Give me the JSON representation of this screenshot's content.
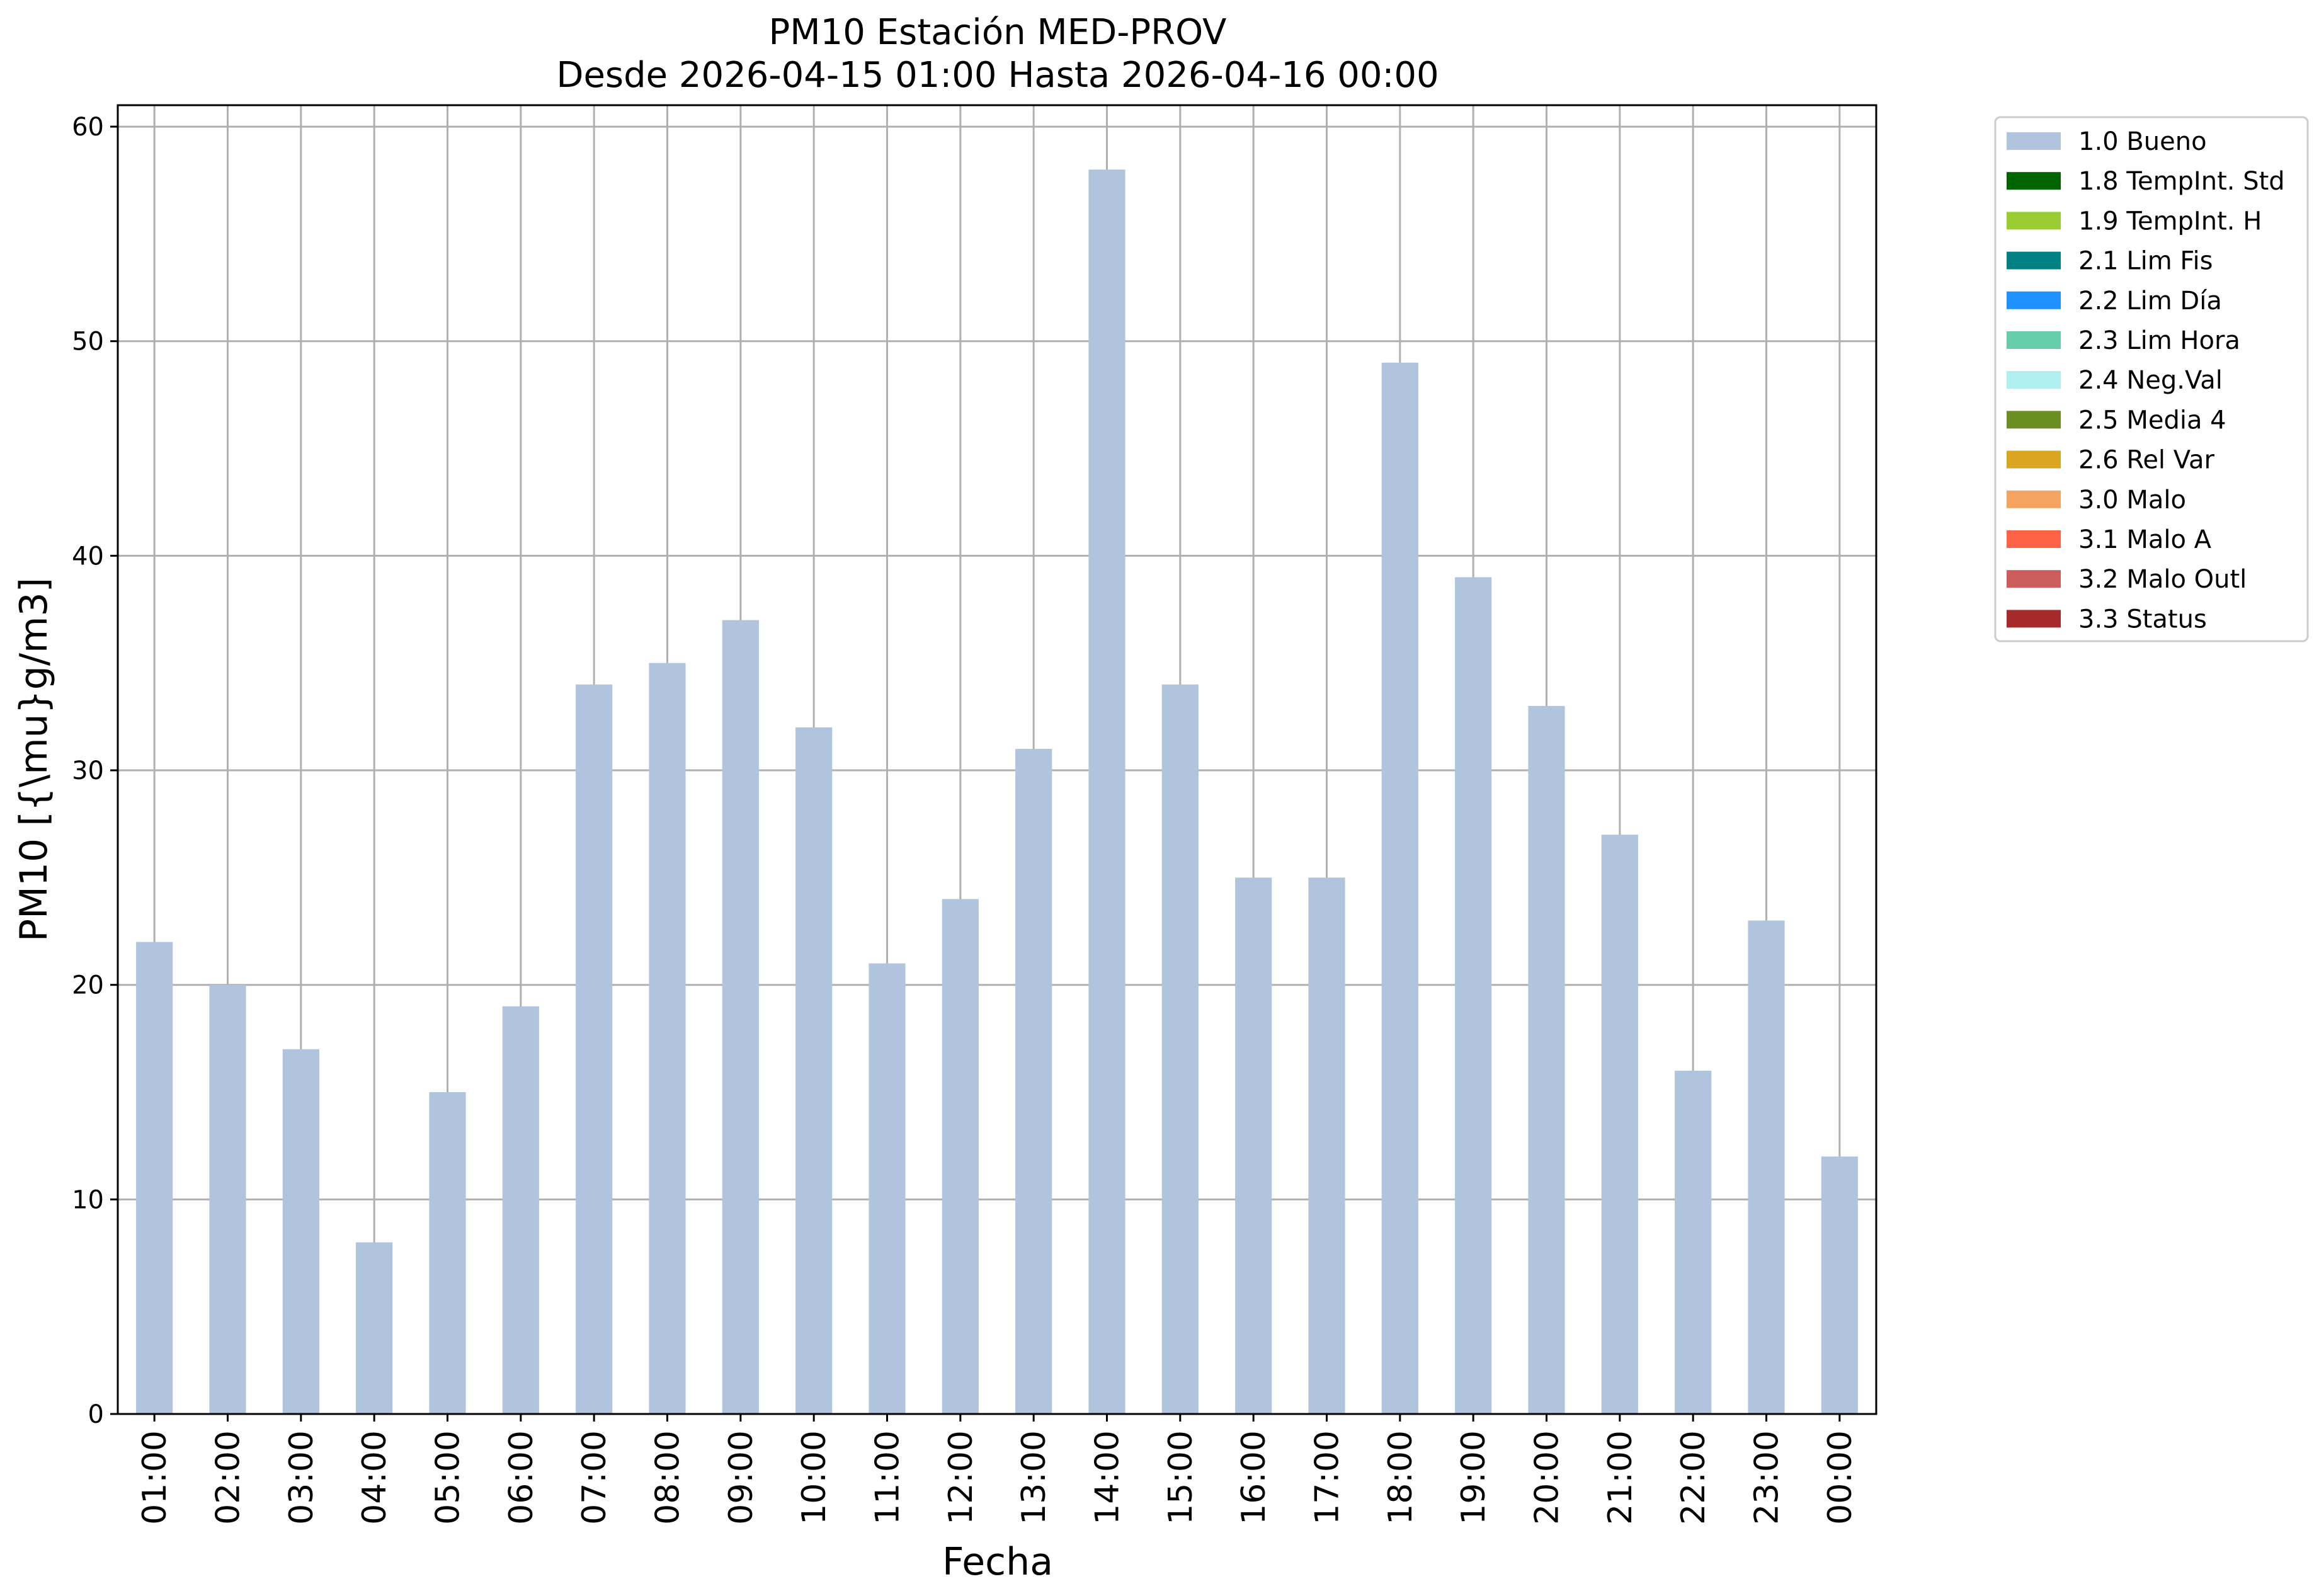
{
  "chart_data": {
    "type": "bar",
    "title": "PM10 Estación MED-PROV",
    "subtitle": "Desde 2026-04-15 01:00 Hasta 2026-04-16 00:00",
    "xlabel": "Fecha",
    "ylabel": "PM10 [{\\mu}g/m3]",
    "ylim": [
      0,
      61
    ],
    "yticks": [
      0,
      10,
      20,
      30,
      40,
      50,
      60
    ],
    "grid": true,
    "legend_position": "outside-top-right",
    "categories": [
      "01:00",
      "02:00",
      "03:00",
      "04:00",
      "05:00",
      "06:00",
      "07:00",
      "08:00",
      "09:00",
      "10:00",
      "11:00",
      "12:00",
      "13:00",
      "14:00",
      "15:00",
      "16:00",
      "17:00",
      "18:00",
      "19:00",
      "20:00",
      "21:00",
      "22:00",
      "23:00",
      "00:00"
    ],
    "series": [
      {
        "name": "1.0 Bueno",
        "color": "#b0c4de",
        "values": [
          22,
          20,
          17,
          8,
          15,
          19,
          34,
          35,
          37,
          32,
          21,
          24,
          31,
          58,
          34,
          25,
          25,
          49,
          39,
          33,
          27,
          16,
          23,
          12
        ]
      }
    ],
    "legend": [
      {
        "label": "1.0 Bueno",
        "color": "#b0c4de"
      },
      {
        "label": "1.8 TempInt. Std",
        "color": "#006400"
      },
      {
        "label": "1.9 TempInt. H",
        "color": "#9acd32"
      },
      {
        "label": "2.1 Lim Fis",
        "color": "#008080"
      },
      {
        "label": "2.2 Lim Día",
        "color": "#1e90ff"
      },
      {
        "label": "2.3 Lim Hora",
        "color": "#66cdaa"
      },
      {
        "label": "2.4 Neg.Val",
        "color": "#afeeee"
      },
      {
        "label": "2.5 Media 4",
        "color": "#6b8e23"
      },
      {
        "label": "2.6 Rel Var",
        "color": "#daa520"
      },
      {
        "label": "3.0 Malo",
        "color": "#f4a460"
      },
      {
        "label": "3.1 Malo A",
        "color": "#ff6347"
      },
      {
        "label": "3.2 Malo Outl",
        "color": "#cd5c5c"
      },
      {
        "label": "3.3 Status",
        "color": "#a52a2a"
      }
    ]
  }
}
